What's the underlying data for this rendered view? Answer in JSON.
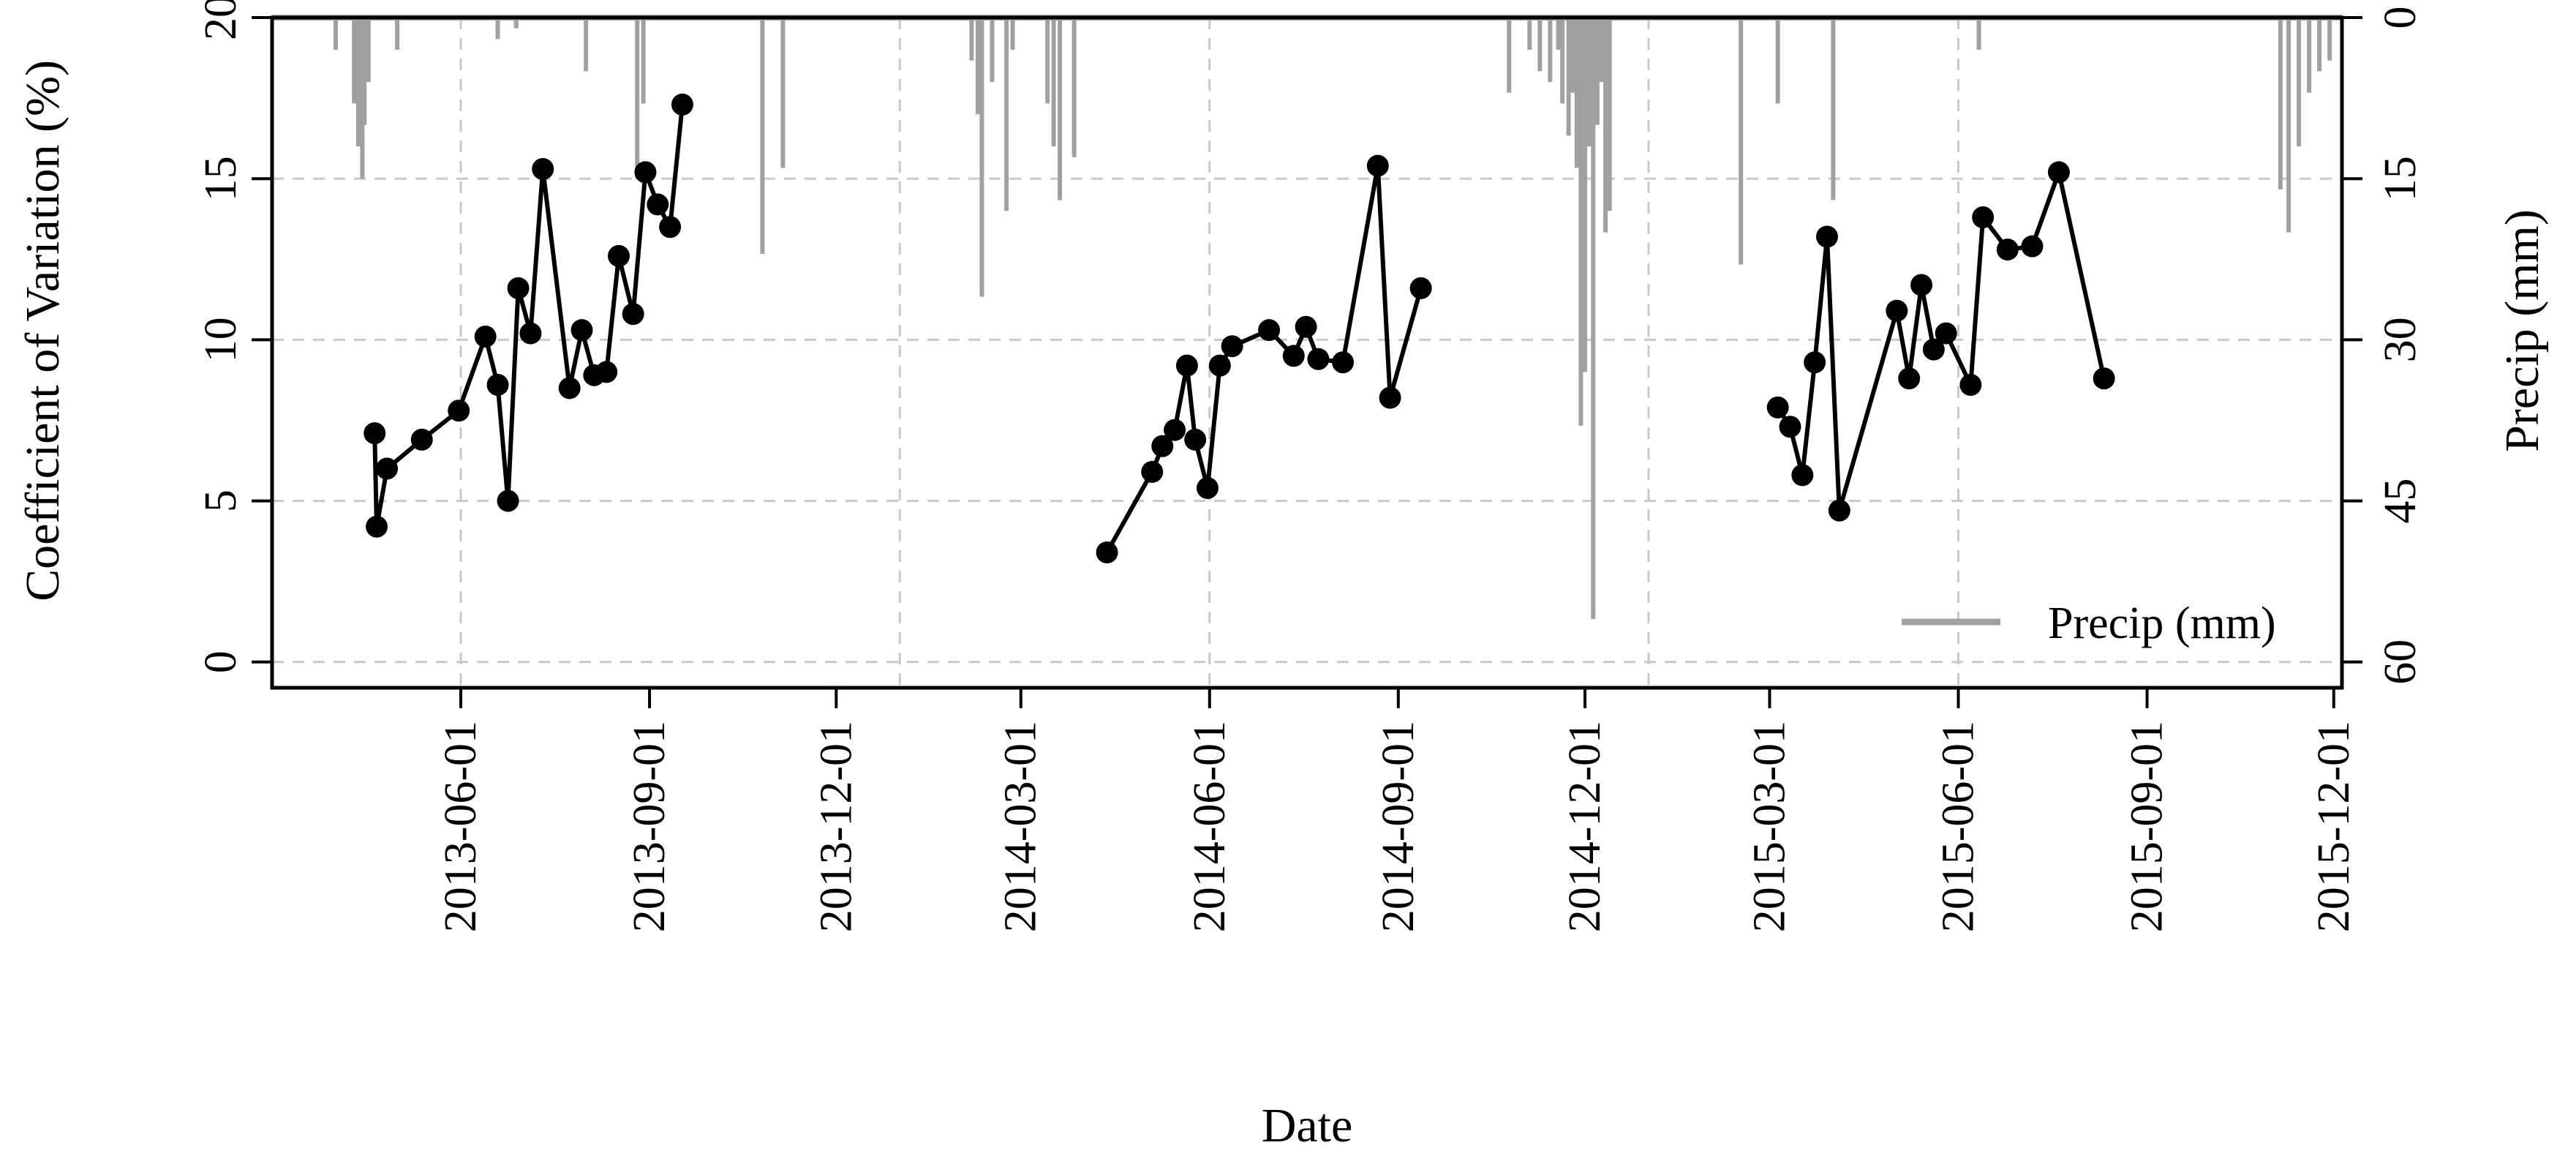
{
  "chart_data": {
    "type": "line",
    "xlabel": "Date",
    "ylabel": "Coefficient of Variation (%)",
    "y2label": "Precip (mm)",
    "xlim": [
      "2013-03-01",
      "2015-12-05"
    ],
    "ylim": [
      -0.8,
      20
    ],
    "y2lim": [
      0,
      60
    ],
    "y2_reversed": true,
    "x_ticks": [
      "2013-06-01",
      "2013-09-01",
      "2013-12-01",
      "2014-03-01",
      "2014-06-01",
      "2014-09-01",
      "2014-12-01",
      "2015-03-01",
      "2015-06-01",
      "2015-09-01",
      "2015-12-01"
    ],
    "y_ticks": [
      "0",
      "5",
      "10",
      "15",
      "20"
    ],
    "y2_ticks": [
      "0",
      "15",
      "30",
      "45",
      "60"
    ],
    "grid": true,
    "year_separators": [
      "2014-01-01",
      "2015-01-01"
    ],
    "legend": {
      "position": "bottom-right",
      "entries": [
        "Precip (mm)"
      ]
    },
    "colors": {
      "cv": "#000000",
      "precip": "#a0a0a0",
      "grid": "#c8c8c8"
    },
    "series": [
      {
        "kind": "line-points",
        "segments": [
          [
            [
              "2013-04-20",
              7.1
            ],
            [
              "2013-04-21",
              4.2
            ],
            [
              "2013-04-26",
              6.0
            ],
            [
              "2013-05-13",
              6.9
            ],
            [
              "2013-05-31",
              7.8
            ],
            [
              "2013-06-13",
              10.1
            ],
            [
              "2013-06-19",
              8.6
            ],
            [
              "2013-06-24",
              5.0
            ],
            [
              "2013-06-29",
              11.6
            ],
            [
              "2013-07-05",
              10.2
            ],
            [
              "2013-07-11",
              15.3
            ],
            [
              "2013-07-24",
              8.5
            ],
            [
              "2013-07-30",
              10.3
            ],
            [
              "2013-08-05",
              8.9
            ],
            [
              "2013-08-11",
              9.0
            ],
            [
              "2013-08-17",
              12.6
            ],
            [
              "2013-08-24",
              10.8
            ],
            [
              "2013-08-30",
              15.2
            ],
            [
              "2013-09-05",
              14.2
            ],
            [
              "2013-09-11",
              13.5
            ],
            [
              "2013-09-17",
              17.3
            ]
          ],
          [
            [
              "2014-04-12",
              3.4
            ],
            [
              "2014-05-04",
              5.9
            ],
            [
              "2014-05-09",
              6.7
            ],
            [
              "2014-05-15",
              7.2
            ],
            [
              "2014-05-21",
              9.2
            ],
            [
              "2014-05-25",
              6.9
            ],
            [
              "2014-05-31",
              5.4
            ],
            [
              "2014-06-06",
              9.2
            ],
            [
              "2014-06-12",
              9.8
            ],
            [
              "2014-06-30",
              10.3
            ],
            [
              "2014-07-12",
              9.5
            ],
            [
              "2014-07-18",
              10.4
            ],
            [
              "2014-07-24",
              9.4
            ],
            [
              "2014-08-05",
              9.3
            ],
            [
              "2014-08-22",
              15.4
            ],
            [
              "2014-08-28",
              8.2
            ],
            [
              "2014-09-12",
              11.6
            ]
          ],
          [
            [
              "2015-03-05",
              7.9
            ],
            [
              "2015-03-11",
              7.3
            ],
            [
              "2015-03-17",
              5.8
            ],
            [
              "2015-03-23",
              9.3
            ],
            [
              "2015-03-29",
              13.2
            ],
            [
              "2015-04-04",
              4.7
            ],
            [
              "2015-05-02",
              10.9
            ],
            [
              "2015-05-08",
              8.8
            ],
            [
              "2015-05-14",
              11.7
            ],
            [
              "2015-05-20",
              9.7
            ],
            [
              "2015-05-26",
              10.2
            ],
            [
              "2015-06-07",
              8.6
            ],
            [
              "2015-06-13",
              13.8
            ],
            [
              "2015-06-25",
              12.8
            ],
            [
              "2015-07-07",
              12.9
            ],
            [
              "2015-07-20",
              15.2
            ],
            [
              "2015-08-11",
              8.8
            ]
          ]
        ]
      },
      {
        "name": "Precip (mm)",
        "kind": "precip-bars",
        "points": [
          [
            "2013-04-01",
            3
          ],
          [
            "2013-04-10",
            8
          ],
          [
            "2013-04-12",
            12
          ],
          [
            "2013-04-14",
            15
          ],
          [
            "2013-04-15",
            10
          ],
          [
            "2013-04-17",
            6
          ],
          [
            "2013-05-01",
            3
          ],
          [
            "2013-06-19",
            2
          ],
          [
            "2013-06-28",
            1
          ],
          [
            "2013-08-01",
            5
          ],
          [
            "2013-08-26",
            15
          ],
          [
            "2013-08-29",
            8
          ],
          [
            "2013-10-26",
            22
          ],
          [
            "2013-11-05",
            14
          ],
          [
            "2014-02-05",
            4
          ],
          [
            "2014-02-08",
            9
          ],
          [
            "2014-02-10",
            26
          ],
          [
            "2014-02-15",
            6
          ],
          [
            "2014-02-22",
            18
          ],
          [
            "2014-02-25",
            3
          ],
          [
            "2014-03-14",
            8
          ],
          [
            "2014-03-17",
            12
          ],
          [
            "2014-03-20",
            17
          ],
          [
            "2014-03-27",
            13
          ],
          [
            "2014-10-25",
            7
          ],
          [
            "2014-11-04",
            3
          ],
          [
            "2014-11-09",
            5
          ],
          [
            "2014-11-14",
            6
          ],
          [
            "2014-11-18",
            3
          ],
          [
            "2014-11-20",
            8
          ],
          [
            "2014-11-23",
            11
          ],
          [
            "2014-11-25",
            7
          ],
          [
            "2014-11-27",
            14
          ],
          [
            "2014-11-29",
            38
          ],
          [
            "2014-12-01",
            33
          ],
          [
            "2014-12-03",
            12
          ],
          [
            "2014-12-05",
            56
          ],
          [
            "2014-12-07",
            10
          ],
          [
            "2014-12-09",
            6
          ],
          [
            "2014-12-11",
            20
          ],
          [
            "2014-12-13",
            18
          ],
          [
            "2015-02-15",
            23
          ],
          [
            "2015-03-05",
            8
          ],
          [
            "2015-04-01",
            17
          ],
          [
            "2015-06-11",
            3
          ],
          [
            "2015-11-05",
            16
          ],
          [
            "2015-11-09",
            20
          ],
          [
            "2015-11-14",
            12
          ],
          [
            "2015-11-19",
            7
          ],
          [
            "2015-11-24",
            5
          ],
          [
            "2015-11-29",
            4
          ]
        ]
      }
    ]
  }
}
